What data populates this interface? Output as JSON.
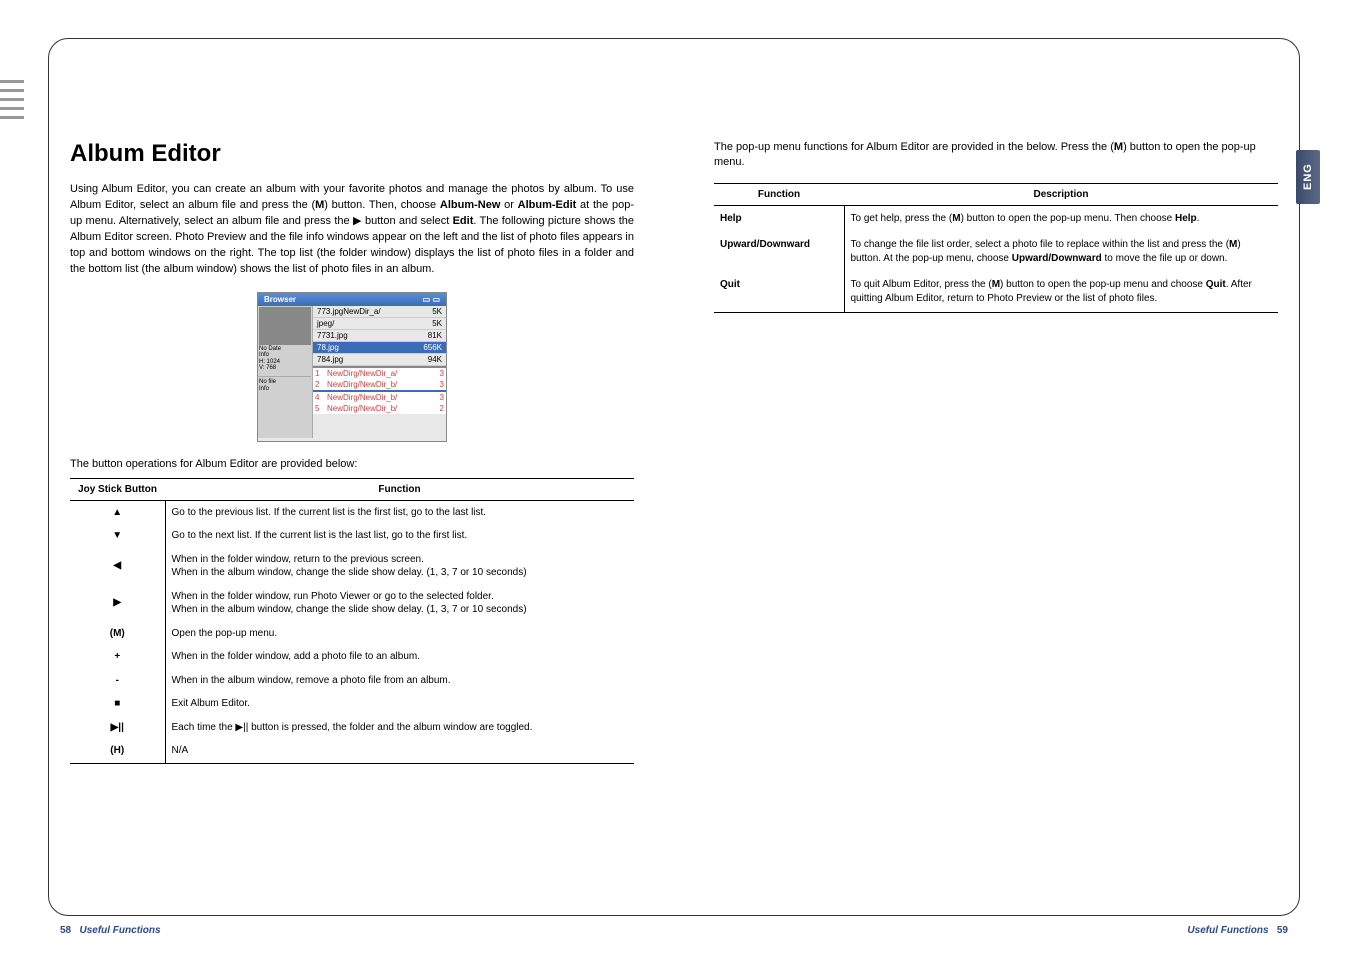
{
  "left": {
    "title": "Album Editor",
    "intro": "Using Album Editor, you can create an album with your favorite photos and manage the photos by album. To use Album Editor, select an album file and press the (<b>M</b>) button. Then, choose <b>Album-New</b> or <b>Album-Edit</b> at the pop-up menu. Alternatively, select an album file and press the ▶ button and select <b>Edit</b>. The following picture shows the Album Editor screen. Photo Preview and the file info windows appear on the left and the list of photo files appears in top and bottom windows on the right. The top list (the folder window) displays the list of photo files in a folder and the bottom list (the album window) shows the list of photo files in an album.",
    "screenshot": {
      "title": "Browser",
      "rows": [
        {
          "name": "773.jpgNewDir_a/",
          "size": "5K"
        },
        {
          "name": "jpeg/",
          "size": "5K"
        },
        {
          "name": "7731.jpg",
          "size": "81K"
        },
        {
          "name": "78.jpg",
          "size": "656K"
        },
        {
          "name": "784.jpg",
          "size": "94K"
        }
      ],
      "info1": [
        "No Date",
        "Info",
        "H: 1024",
        "V: 768"
      ],
      "info2": [
        "No file",
        "Info"
      ],
      "albums": [
        {
          "n": "1",
          "name": "NewDirg/NewDir_a/",
          "c": "3"
        },
        {
          "n": "2",
          "name": "NewDirg/NewDir_b/",
          "c": "3"
        },
        {
          "n": "",
          "name": "",
          "c": ""
        },
        {
          "n": "4",
          "name": "NewDirg/NewDir_b/",
          "c": "3"
        },
        {
          "n": "5",
          "name": "NewDirg/NewDir_b/",
          "c": "2"
        }
      ]
    },
    "table_caption": "The button operations for Album Editor are provided below:",
    "table_headers": [
      "Joy Stick Button",
      "Function"
    ],
    "table_rows": [
      {
        "btn": "▲",
        "func": "Go to the previous list. If the current list is the first list, go to the last list."
      },
      {
        "btn": "▼",
        "func": "Go to the next list. If the current list is the last list, go to the first list."
      },
      {
        "btn": "◀",
        "func": "When in the folder window, return to the previous screen.<br>When in the album window, change the slide show delay. (1, 3, 7 or 10 seconds)"
      },
      {
        "btn": "▶",
        "func": "When in the folder window, run Photo Viewer or go to the selected folder.<br>When in the album window, change the slide show delay. (1, 3, 7 or 10 seconds)"
      },
      {
        "btn": "(M)",
        "func": "Open the pop-up menu."
      },
      {
        "btn": "+",
        "func": "When in the folder window, add a photo file to an album."
      },
      {
        "btn": "-",
        "func": "When in the album window, remove a photo file from an album."
      },
      {
        "btn": "■",
        "func": "Exit Album Editor."
      },
      {
        "btn": "▶||",
        "func": "Each time the ▶|| button is pressed, the folder and the album window are toggled."
      },
      {
        "btn": "(H)",
        "func": "N/A"
      }
    ]
  },
  "right": {
    "intro": "The pop-up menu functions for Album Editor are provided in the below. Press the (<b>M</b>) button to open the pop-up menu.",
    "table_headers": [
      "Function",
      "Description"
    ],
    "table_rows": [
      {
        "fn": "Help",
        "desc": "To get help, press the (<b>M</b>) button to open the pop-up menu. Then choose <b>Help</b>."
      },
      {
        "fn": "Upward/Downward",
        "desc": "To change the file list order, select a photo file to replace within the list and press the (<b>M</b>) button. At the pop-up menu, choose <b>Upward/Downward</b> to move the file up or down."
      },
      {
        "fn": "Quit",
        "desc": "To quit Album Editor, press the (<b>M</b>) button to open the pop-up menu and choose <b>Quit</b>. After quitting Album Editor, return to Photo Preview or the list of photo files."
      }
    ],
    "tab": "ENG"
  },
  "footer": {
    "left_num": "58",
    "right_num": "59",
    "section": "Useful Functions"
  }
}
